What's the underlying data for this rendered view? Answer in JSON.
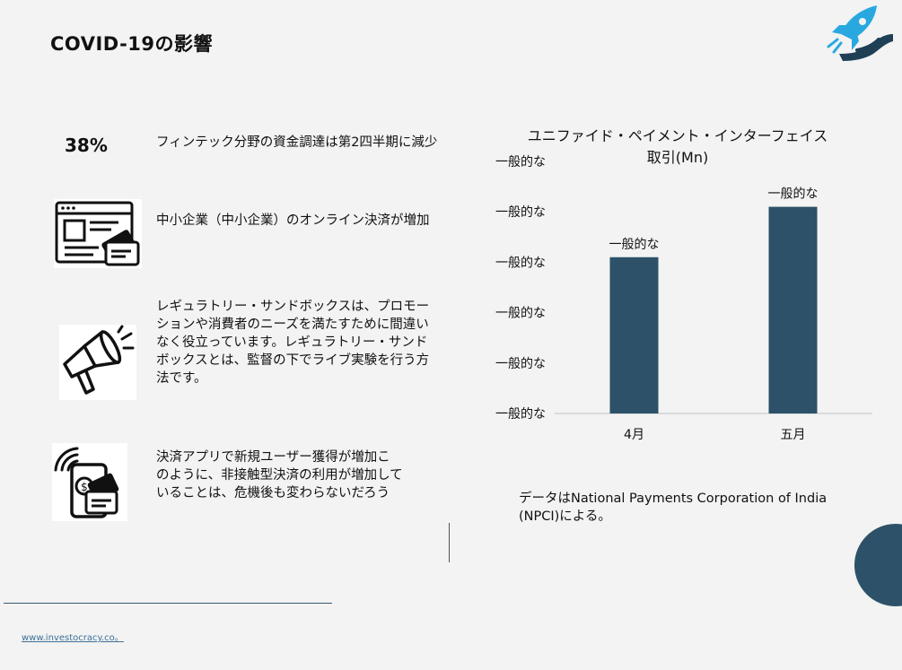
{
  "title": "COVID-19の影響",
  "stats": [
    {
      "number": "38%",
      "text": "フィンテック分野の資金調達は第2四半期に減少"
    },
    {
      "text": "中小企業（中小企業）のオンライン決済が増加"
    },
    {
      "text": "レギュラトリー・サンドボックスは、プロモーションや消費者のニーズを満たすために間違いなく役立っています。レギュラトリー・サンドボックスとは、監督の下でライブ実験を行う方法です。"
    },
    {
      "text": "決済アプリで新規ユーザー獲得が増加このように、非接触型決済の利用が増加していることは、危機後も変わらないだろう"
    }
  ],
  "icons": [
    "browser-card-icon",
    "megaphone-icon",
    "mobile-payment-icon",
    "rocket-hand-logo-icon"
  ],
  "chart_data": {
    "type": "bar",
    "title": "ユニファイド・ペイメント・インターフェイス取引(Mn)",
    "categories": [
      "4月",
      "五月"
    ],
    "values": [
      3.1,
      4.1
    ],
    "data_labels": [
      "一般的な",
      "一般的な"
    ],
    "ytick_labels": [
      "一般的な",
      "一般的な",
      "一般的な",
      "一般的な",
      "一般的な",
      "一般的な"
    ],
    "ylim": [
      0,
      5
    ],
    "bar_color": "#2c5168",
    "grid": false
  },
  "source": "データはNational Payments Corporation of India (NPCI)による。",
  "footer_link": "www.investocracy.co。",
  "colors": {
    "accent": "#2c5168",
    "logo_blue": "#29a8e0",
    "background": "#f2f3f2"
  }
}
